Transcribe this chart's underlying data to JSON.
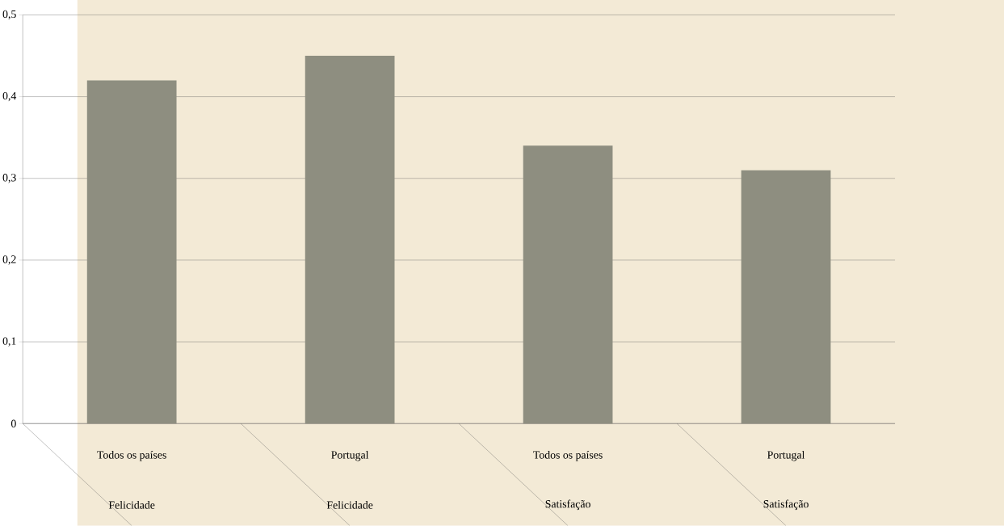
{
  "chart_data": {
    "type": "bar",
    "categories": [
      "Todos os países",
      "Portugal",
      "Todos os países",
      "Portugal"
    ],
    "values": [
      0.42,
      0.45,
      0.34,
      0.31
    ],
    "color": "#8e8e80",
    "ylim": [
      0,
      0.5
    ],
    "yticks": [
      0,
      {
        "value": 0.1,
        "label": "0,1"
      },
      {
        "value": 0.2,
        "label": "0,2"
      },
      {
        "value": 0.3,
        "label": "0,3"
      },
      {
        "value": 0.4,
        "label": "0,4"
      },
      {
        "value": 0.5,
        "label": "0,5"
      }
    ],
    "grid": "y",
    "annotations": [
      "Felicidade",
      "Felicidade",
      "Satisfação",
      "Satisfação"
    ]
  }
}
